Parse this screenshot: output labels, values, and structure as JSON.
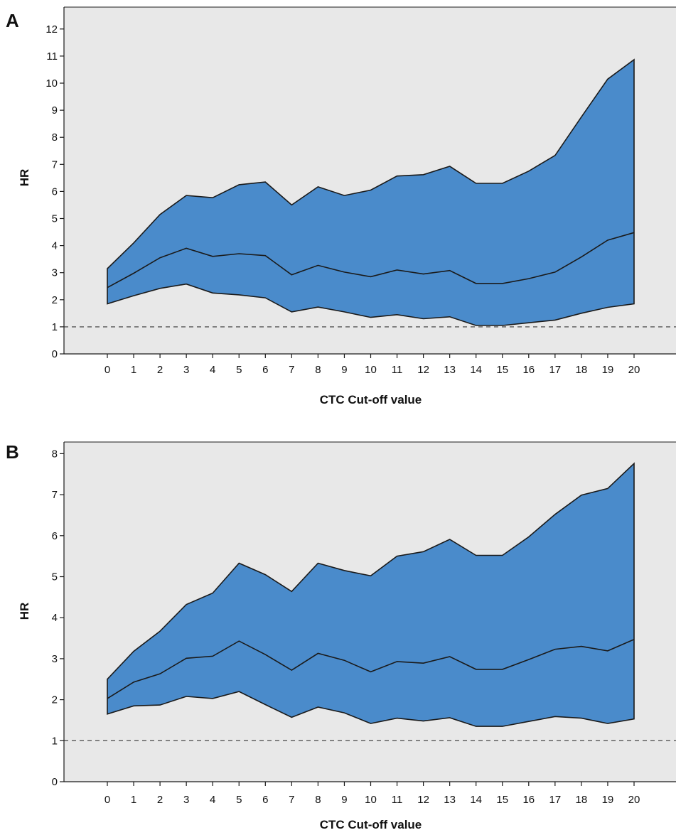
{
  "colors": {
    "plot_background": "#e8e8e8",
    "band_fill": "#4a8bcb",
    "lines": "#1a1a1a",
    "reference_line": "#555555"
  },
  "chart_data": [
    {
      "panel": "A",
      "type": "area",
      "xlabel": "CTC Cut-off value",
      "ylabel": "HR",
      "x": [
        0,
        1,
        2,
        3,
        4,
        5,
        6,
        7,
        8,
        9,
        10,
        11,
        12,
        13,
        14,
        15,
        16,
        17,
        18,
        19,
        20
      ],
      "ylim": [
        0,
        12.5
      ],
      "yticks": [
        0,
        1,
        2,
        3,
        4,
        5,
        6,
        7,
        8,
        9,
        10,
        11,
        12
      ],
      "reference_line": 1,
      "grid": false,
      "series": [
        {
          "role": "upper",
          "values": [
            3.15,
            4.1,
            5.15,
            5.85,
            5.77,
            6.25,
            6.35,
            5.5,
            6.17,
            5.85,
            6.05,
            6.57,
            6.62,
            6.93,
            6.3,
            6.3,
            6.75,
            7.33,
            8.75,
            10.15,
            10.87
          ]
        },
        {
          "role": "estimate",
          "values": [
            2.45,
            2.98,
            3.55,
            3.9,
            3.6,
            3.7,
            3.63,
            2.92,
            3.27,
            3.02,
            2.85,
            3.1,
            2.95,
            3.08,
            2.6,
            2.6,
            2.78,
            3.02,
            3.58,
            4.2,
            4.48
          ]
        },
        {
          "role": "lower",
          "values": [
            1.85,
            2.15,
            2.42,
            2.58,
            2.25,
            2.18,
            2.07,
            1.55,
            1.73,
            1.55,
            1.35,
            1.45,
            1.3,
            1.37,
            1.05,
            1.05,
            1.15,
            1.25,
            1.5,
            1.72,
            1.85
          ]
        }
      ]
    },
    {
      "panel": "B",
      "type": "area",
      "xlabel": "CTC Cut-off value",
      "ylabel": "HR",
      "x": [
        0,
        1,
        2,
        3,
        4,
        5,
        6,
        7,
        8,
        9,
        10,
        11,
        12,
        13,
        14,
        15,
        16,
        17,
        18,
        19,
        20
      ],
      "ylim": [
        0,
        8.45
      ],
      "yticks": [
        0,
        1,
        2,
        3,
        4,
        5,
        6,
        7,
        8
      ],
      "reference_line": 1,
      "grid": false,
      "series": [
        {
          "role": "upper",
          "values": [
            2.5,
            3.18,
            3.67,
            4.32,
            4.6,
            5.33,
            5.05,
            4.64,
            5.33,
            5.15,
            5.02,
            5.5,
            5.61,
            5.91,
            5.52,
            5.52,
            5.97,
            6.52,
            6.99,
            7.15,
            7.76
          ]
        },
        {
          "role": "estimate",
          "values": [
            2.03,
            2.43,
            2.63,
            3.01,
            3.06,
            3.43,
            3.1,
            2.72,
            3.13,
            2.96,
            2.68,
            2.93,
            2.89,
            3.05,
            2.74,
            2.74,
            2.98,
            3.23,
            3.3,
            3.19,
            3.47
          ]
        },
        {
          "role": "lower",
          "values": [
            1.65,
            1.85,
            1.87,
            2.08,
            2.03,
            2.2,
            1.88,
            1.57,
            1.82,
            1.68,
            1.42,
            1.55,
            1.48,
            1.56,
            1.35,
            1.35,
            1.47,
            1.59,
            1.55,
            1.42,
            1.53
          ]
        }
      ]
    }
  ]
}
